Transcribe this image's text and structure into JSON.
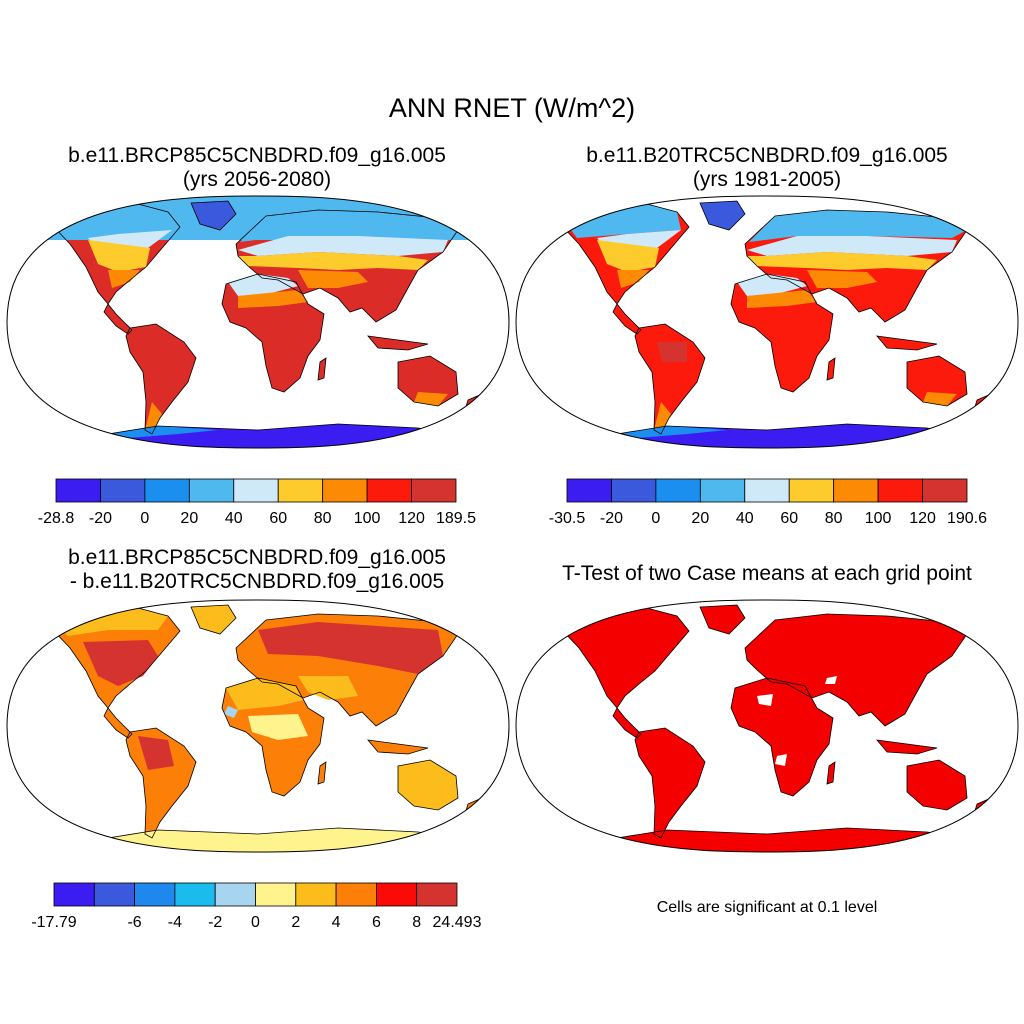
{
  "figure": {
    "title": "ANN RNET (W/m^2)"
  },
  "panels": [
    {
      "title_line1": "b.e11.BRCP85C5CNBDRD.f09_g16.005",
      "title_line2": "(yrs 2056-2080)"
    },
    {
      "title_line1": "b.e11.B20TRC5CNBDRD.f09_g16.005",
      "title_line2": "(yrs 1981-2005)"
    },
    {
      "title_line1": "b.e11.BRCP85C5CNBDRD.f09_g16.005",
      "title_line2": "- b.e11.B20TRC5CNBDRD.f09_g16.005"
    },
    {
      "title_line1": "T-Test of two Case means at each grid point",
      "footer": "Cells are significant at 0.1 level"
    }
  ],
  "colorbars": [
    {
      "colors": [
        "#3b1df2",
        "#3a59dd",
        "#1a8ff0",
        "#4fb8ee",
        "#cfe9f9",
        "#fdcb2b",
        "#fc8a04",
        "#fb1a0c",
        "#d53330"
      ],
      "labels": [
        "-28.8",
        "-20",
        "0",
        "20",
        "40",
        "60",
        "80",
        "100",
        "120",
        "189.5"
      ]
    },
    {
      "colors": [
        "#3b1df2",
        "#3a59dd",
        "#1a8ff0",
        "#4fb8ee",
        "#cfe9f9",
        "#fdcb2b",
        "#fc8a04",
        "#fb1a0c",
        "#d53330"
      ],
      "labels": [
        "-30.5",
        "-20",
        "0",
        "20",
        "40",
        "60",
        "80",
        "100",
        "120",
        "190.6"
      ]
    },
    {
      "colors": [
        "#3b1df2",
        "#3a59dd",
        "#1f88ee",
        "#1bbbee",
        "#a7d5ef",
        "#fff38e",
        "#fcbd1c",
        "#fc7f08",
        "#fb0b07",
        "#d53330"
      ],
      "labels": [
        "-17.79",
        "",
        "-6",
        "-4",
        "-2",
        "0",
        "2",
        "4",
        "6",
        "8",
        "24.493"
      ]
    }
  ],
  "map_colors": {
    "blue_dark": "#3b1df2",
    "blue_mid": "#3a59dd",
    "blue": "#1a8ff0",
    "blue_light": "#4fb8ee",
    "pale_blue": "#cfe9f9",
    "yellow": "#fdcb2b",
    "orange": "#fc8a04",
    "red": "#fb1a0c",
    "dark_red": "#d53330",
    "pale_yellow": "#fff38e",
    "sig_red": "#f40000"
  }
}
